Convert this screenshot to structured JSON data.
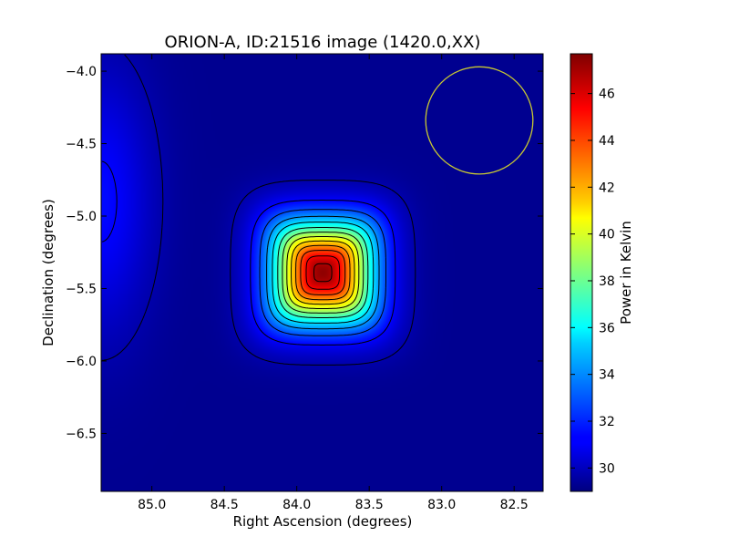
{
  "chart_data": {
    "type": "heatmap",
    "title": "ORION-A, ID:21516 image (1420.0,XX)",
    "xlabel": "Right Ascension (degrees)",
    "ylabel": "Declination (degrees)",
    "colorbar_label": "Power in Kelvin",
    "colormap": "jet",
    "x_axis_inverted": true,
    "xlim": [
      85.35,
      82.3
    ],
    "ylim": [
      -6.9,
      -3.88
    ],
    "x_ticks": [
      85.0,
      84.5,
      84.0,
      83.5,
      83.0,
      82.5
    ],
    "x_tick_labels": [
      "85.0",
      "84.5",
      "84.0",
      "83.5",
      "83.0",
      "82.5"
    ],
    "y_ticks": [
      -4.0,
      -4.5,
      -5.0,
      -5.5,
      -6.0,
      -6.5
    ],
    "y_tick_labels": [
      "−4.0",
      "−4.5",
      "−5.0",
      "−5.5",
      "−6.0",
      "−6.5"
    ],
    "clim": [
      29.0,
      47.7
    ],
    "colorbar_ticks": [
      30,
      32,
      34,
      36,
      38,
      40,
      42,
      44,
      46
    ],
    "colorbar_tick_labels": [
      "30",
      "32",
      "34",
      "36",
      "38",
      "40",
      "42",
      "44",
      "46"
    ],
    "source_peak": {
      "ra": 83.82,
      "dec": -5.39,
      "value": 47.7
    },
    "background_level": 29.3,
    "secondary_emission": {
      "ra": 85.35,
      "dec": -4.9,
      "value": 31.5
    },
    "contour_levels": [
      29.8,
      31.3,
      32.7,
      34.1,
      35.5,
      37.0,
      38.4,
      39.8,
      41.2,
      42.6,
      44.0,
      45.4,
      46.8
    ],
    "beam_circle": {
      "ra": 82.74,
      "dec": -4.34,
      "radius_deg": 0.37,
      "color": "#c8c832"
    },
    "grid": false,
    "contour_color": "#000000"
  }
}
